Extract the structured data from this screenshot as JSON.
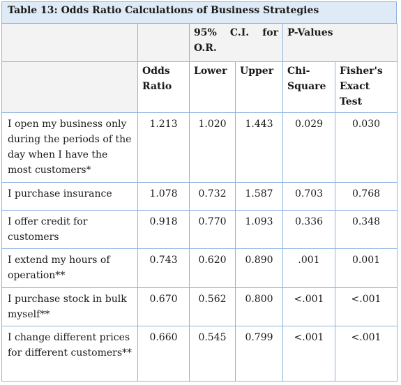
{
  "table": {
    "caption": "Table 13: Odds Ratio Calculations of Business Strategies",
    "header": {
      "ci_group": [
        "95%",
        "C.I.",
        "for"
      ],
      "ci_group_line2": "O.R.",
      "pvalues_group": "P-Values",
      "odds_ratio": [
        "Odds",
        "Ratio"
      ],
      "lower": "Lower",
      "upper": "Upper",
      "chi_square": [
        "Chi-",
        "Square"
      ],
      "fisher": [
        "Fisher's",
        "Exact",
        "Test"
      ]
    },
    "rows": [
      {
        "label": "I open my business only during the periods of the day when I have the most customers*",
        "odds": "1.213",
        "lower": "1.020",
        "upper": "1.443",
        "chi": "0.029",
        "fisher": "0.030"
      },
      {
        "label": "I purchase insurance",
        "odds": "1.078",
        "lower": "0.732",
        "upper": "1.587",
        "chi": "0.703",
        "fisher": "0.768"
      },
      {
        "label": "I offer credit for customers",
        "odds": "0.918",
        "lower": "0.770",
        "upper": "1.093",
        "chi": "0.336",
        "fisher": "0.348"
      },
      {
        "label": "I extend my hours of operation**",
        "odds": "0.743",
        "lower": "0.620",
        "upper": "0.890",
        "chi": ".001",
        "fisher": "0.001"
      },
      {
        "label": "I purchase stock in bulk myself**",
        "odds": "0.670",
        "lower": "0.562",
        "upper": "0.800",
        "chi": "<.001",
        "fisher": "<.001"
      },
      {
        "label": "I change different prices for different customers**",
        "odds": "0.660",
        "lower": "0.545",
        "upper": "0.799",
        "chi": "<.001",
        "fisher": "<.001"
      }
    ]
  }
}
